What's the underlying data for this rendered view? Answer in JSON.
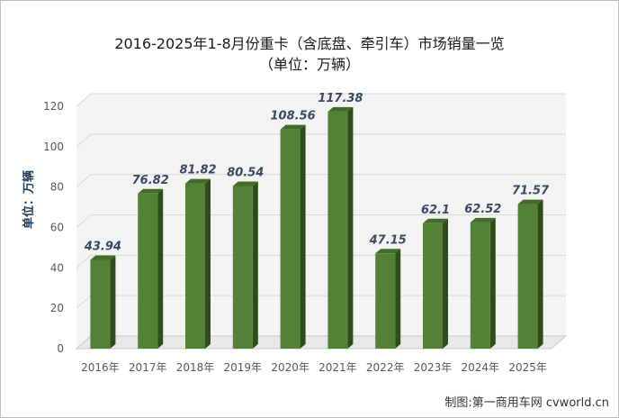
{
  "colors": {
    "bar_front": "#538135",
    "bar_side": "#2e4d1a",
    "bar_top": "#446b2b",
    "label": "#3a4a66",
    "axis_text": "#595959",
    "grid": "#d9d9d9",
    "wall": "#f3f3f3"
  },
  "chart_data": {
    "type": "bar",
    "title": "2016-2025年1-8月份重卡（含底盘、牵引车）市场销量一览",
    "subtitle": "（单位：万辆）",
    "ylabel": "单位：万辆",
    "xlabel": "",
    "categories": [
      "2016年",
      "2017年",
      "2018年",
      "2019年",
      "2020年",
      "2021年",
      "2022年",
      "2023年",
      "2024年",
      "2025年"
    ],
    "values": [
      43.94,
      76.82,
      81.82,
      80.54,
      108.56,
      117.38,
      47.15,
      62.1,
      62.52,
      71.57
    ],
    "value_labels": [
      "43.94",
      "76.82",
      "81.82",
      "80.54",
      "108.56",
      "117.38",
      "47.15",
      "62.1",
      "62.52",
      "71.57"
    ],
    "ylim": [
      0,
      120
    ],
    "yticks": [
      0,
      20,
      40,
      60,
      80,
      100,
      120
    ],
    "grid": true,
    "legend": "none"
  },
  "footer": {
    "credit": "制图:第一商用车网 cvworld.cn"
  }
}
